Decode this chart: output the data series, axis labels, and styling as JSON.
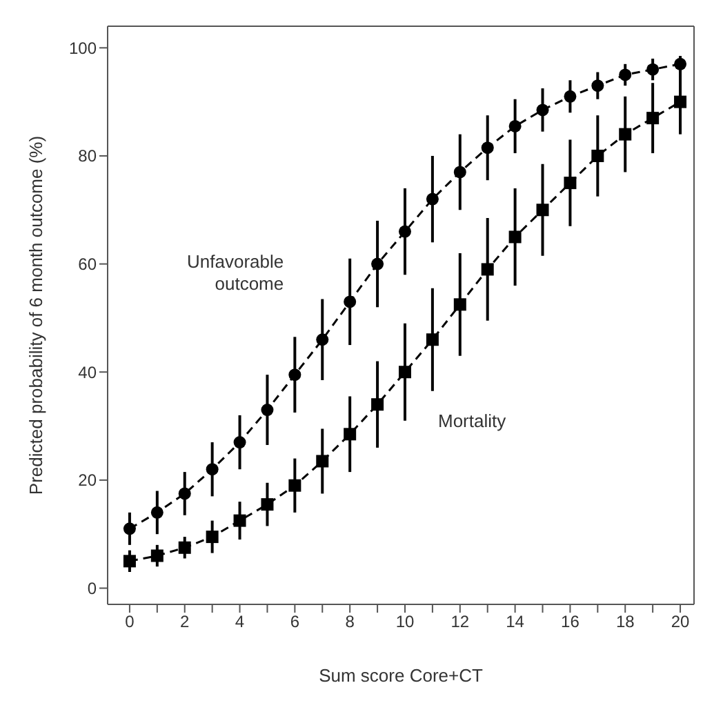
{
  "chart_data": {
    "type": "line",
    "xlabel": "Sum score Core+CT",
    "ylabel": "Predicted probability of 6 month outcome (%)",
    "x": [
      0,
      1,
      2,
      3,
      4,
      5,
      6,
      7,
      8,
      9,
      10,
      11,
      12,
      13,
      14,
      15,
      16,
      17,
      18,
      19,
      20
    ],
    "series": [
      {
        "name": "Unfavorable outcome",
        "color": "#000000",
        "marker": "circle",
        "values": [
          11,
          14,
          17.5,
          22,
          27,
          33,
          39.5,
          46,
          53,
          60,
          66,
          72,
          77,
          81.5,
          85.5,
          88.5,
          91,
          93,
          95,
          96,
          97
        ],
        "errors": [
          3,
          4,
          4,
          5,
          5,
          6.5,
          7,
          7.5,
          8,
          8,
          8,
          8,
          7,
          6,
          5,
          4,
          3,
          2.5,
          2,
          2,
          1.5
        ]
      },
      {
        "name": "Mortality",
        "color": "#000000",
        "marker": "square",
        "values": [
          5,
          6,
          7.5,
          9.5,
          12.5,
          15.5,
          19,
          23.5,
          28.5,
          34,
          40,
          46,
          52.5,
          59,
          65,
          70,
          75,
          80,
          84,
          87,
          90
        ],
        "errors": [
          2,
          2,
          2,
          3,
          3.5,
          4,
          5,
          6,
          7,
          8,
          9,
          9.5,
          9.5,
          9.5,
          9,
          8.5,
          8,
          7.5,
          7,
          6.5,
          6
        ]
      }
    ],
    "xlim": [
      -0.8,
      20.5
    ],
    "xticks": [
      0,
      {
        "value": 1,
        "label": null
      },
      2,
      {
        "value": 3,
        "label": null
      },
      4,
      {
        "value": 5,
        "label": null
      },
      6,
      {
        "value": 7,
        "label": null
      },
      8,
      {
        "value": 9,
        "label": null
      },
      10,
      {
        "value": 11,
        "label": null
      },
      12,
      {
        "value": 13,
        "label": null
      },
      14,
      {
        "value": 15,
        "label": null
      },
      16,
      {
        "value": 17,
        "label": null
      },
      18,
      {
        "value": 19,
        "label": null
      },
      20
    ],
    "ylim": [
      -3,
      104
    ],
    "yticks": [
      0,
      20,
      40,
      60,
      80,
      100
    ],
    "line_style": "dashed",
    "grid": false
  }
}
